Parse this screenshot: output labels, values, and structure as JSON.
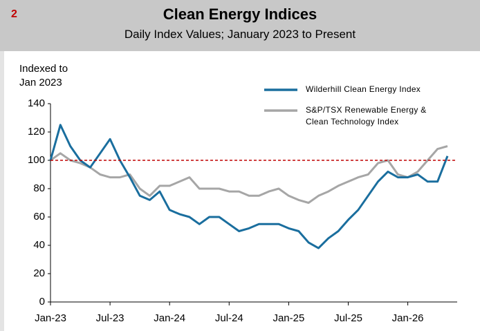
{
  "figure_number": "2",
  "chart_data": {
    "type": "line",
    "title": "Clean Energy Indices",
    "subtitle": "Daily Index Values; January 2023 to Present",
    "ylabel": [
      "Indexed to",
      "Jan 2023"
    ],
    "x": [
      "2023-01",
      "2023-02",
      "2023-03",
      "2023-04",
      "2023-05",
      "2023-06",
      "2023-07",
      "2023-08",
      "2023-09",
      "2023-10",
      "2023-11",
      "2023-12",
      "2024-01",
      "2024-02",
      "2024-03",
      "2024-04",
      "2024-05",
      "2024-06",
      "2024-07",
      "2024-08",
      "2024-09",
      "2024-10",
      "2024-11",
      "2024-12",
      "2025-01",
      "2025-02",
      "2025-03",
      "2025-04",
      "2025-05",
      "2025-06",
      "2025-07",
      "2025-08",
      "2025-09",
      "2025-10",
      "2025-11",
      "2025-12",
      "2026-01",
      "2026-02",
      "2026-03",
      "2026-04",
      "2026-05"
    ],
    "series": [
      {
        "name": "Wilderhill Clean Energy Index",
        "color": "#1a6e9e",
        "values": [
          100,
          125,
          110,
          100,
          95,
          105,
          115,
          100,
          88,
          75,
          72,
          78,
          65,
          62,
          60,
          55,
          60,
          60,
          55,
          50,
          52,
          55,
          55,
          55,
          52,
          50,
          42,
          38,
          45,
          50,
          58,
          65,
          75,
          85,
          92,
          88,
          88,
          90,
          85,
          85,
          103
        ]
      },
      {
        "name": "S&P/TSX Renewable Energy & Clean Technology Index",
        "color": "#a6a6a6",
        "values": [
          100,
          105,
          100,
          98,
          95,
          90,
          88,
          88,
          90,
          80,
          75,
          82,
          82,
          85,
          88,
          80,
          80,
          80,
          78,
          78,
          75,
          75,
          78,
          80,
          75,
          72,
          70,
          75,
          78,
          82,
          85,
          88,
          90,
          98,
          100,
          90,
          88,
          92,
          100,
          108,
          110
        ]
      }
    ],
    "xlim": [
      "2023-01",
      "2026-05"
    ],
    "xticks": [
      {
        "value": "2023-01",
        "label": "Jan-23"
      },
      {
        "value": "2023-07",
        "label": "Jul-23"
      },
      {
        "value": "2024-01",
        "label": "Jan-24"
      },
      {
        "value": "2024-07",
        "label": "Jul-24"
      },
      {
        "value": "2025-01",
        "label": "Jan-25"
      },
      {
        "value": "2025-07",
        "label": "Jul-25"
      },
      {
        "value": "2026-01",
        "label": "Jan-26"
      }
    ],
    "ylim": [
      0,
      140
    ],
    "yticks": [
      0,
      20,
      40,
      60,
      80,
      100,
      120,
      140
    ],
    "reference_line": {
      "value": 100,
      "color": "#c00000"
    },
    "legend": "upper right"
  }
}
